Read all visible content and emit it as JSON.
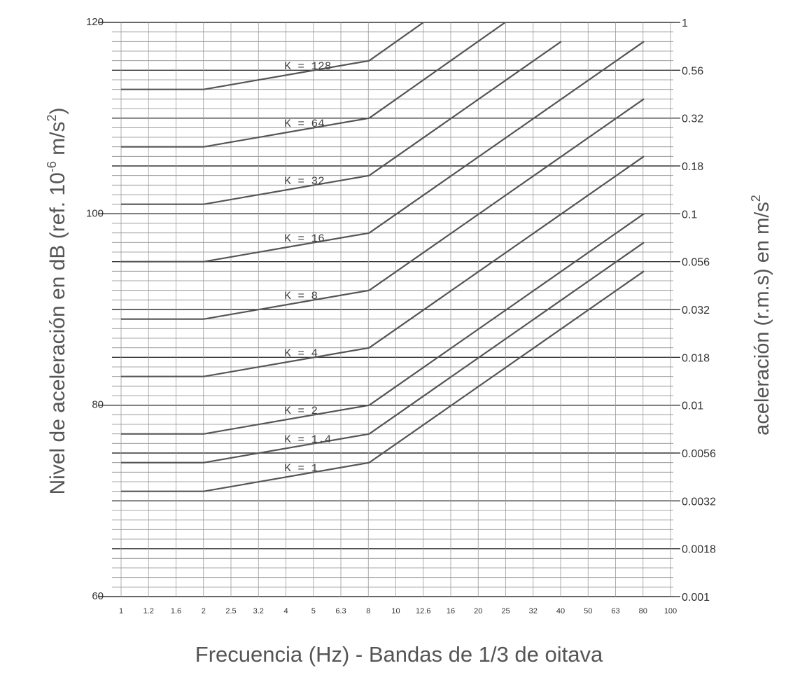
{
  "chart_data": {
    "type": "line",
    "xlabel": "Frecuencia (Hz) - Bandas de 1/3 de oitava",
    "ylabel_prefix": "Nivel de aceleración en dB (ref. 10",
    "ylabel_exp": "-6",
    "ylabel_mid": " m/s",
    "ylabel_sq": "2",
    "ylabel_suffix": ")",
    "y2label_prefix": "aceleración (r.m.s) en m/s",
    "y2label_sq": "2",
    "x_scale": "log (1/3-octave bands)",
    "x_ticks": [
      "1",
      "1.2",
      "1.6",
      "2",
      "2.5",
      "3.2",
      "4",
      "5",
      "6.3",
      "8",
      "10",
      "12.6",
      "16",
      "20",
      "25",
      "32",
      "40",
      "50",
      "63",
      "80",
      "100"
    ],
    "ylim": [
      60,
      120
    ],
    "y_ticks": [
      "60",
      "80",
      "100",
      "120"
    ],
    "y2_ticks": [
      "0.001",
      "0.0018",
      "0.0032",
      "0.0056",
      "0.01",
      "0.018",
      "0.032",
      "0.056",
      "0.1",
      "0.18",
      "0.32",
      "0.56",
      "1"
    ],
    "grid": true,
    "series": [
      {
        "name": "K = 1",
        "label": "K  =  1",
        "x": [
          1,
          2,
          8,
          80
        ],
        "y": [
          71,
          71,
          74,
          94
        ]
      },
      {
        "name": "K = 1.4",
        "label": "K  =  1.4",
        "x": [
          1,
          2,
          8,
          80
        ],
        "y": [
          74,
          74,
          77,
          97
        ]
      },
      {
        "name": "K = 2",
        "label": "K  =  2",
        "x": [
          1,
          2,
          8,
          80
        ],
        "y": [
          77,
          77,
          80,
          100
        ]
      },
      {
        "name": "K = 4",
        "label": "K  =  4",
        "x": [
          1,
          2,
          8,
          80
        ],
        "y": [
          83,
          83,
          86,
          106
        ]
      },
      {
        "name": "K = 8",
        "label": "K  =  8",
        "x": [
          1,
          2,
          8,
          80
        ],
        "y": [
          89,
          89,
          92,
          112
        ]
      },
      {
        "name": "K = 16",
        "label": "K  =  16",
        "x": [
          1,
          2,
          8,
          80
        ],
        "y": [
          95,
          95,
          98,
          118
        ]
      },
      {
        "name": "K = 32",
        "label": "K  =  32",
        "x": [
          1,
          2,
          8,
          40
        ],
        "y": [
          101,
          101,
          104,
          118
        ]
      },
      {
        "name": "K = 64",
        "label": "K  =  64",
        "x": [
          1,
          2,
          8,
          25
        ],
        "y": [
          107,
          107,
          110,
          120
        ]
      },
      {
        "name": "K = 128",
        "label": "K  =  128",
        "x": [
          1,
          2,
          8,
          12.6
        ],
        "y": [
          113,
          113,
          116,
          120
        ]
      }
    ]
  }
}
